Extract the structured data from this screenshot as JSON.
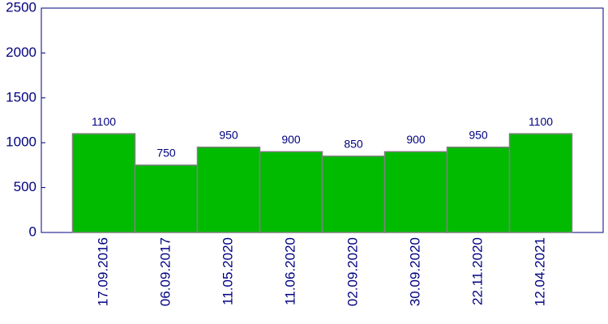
{
  "chart_data": {
    "type": "bar",
    "categories": [
      "17.09.2016",
      "06.09.2017",
      "11.05.2020",
      "11.06.2020",
      "02.09.2020",
      "30.09.2020",
      "22.11.2020",
      "12.04.2021"
    ],
    "values": [
      1100,
      750,
      950,
      900,
      850,
      900,
      950,
      1100
    ],
    "color": "#00bb00",
    "ylim": [
      0,
      2500
    ],
    "yticks": [
      0,
      500,
      1000,
      1500,
      2000,
      2500
    ]
  }
}
